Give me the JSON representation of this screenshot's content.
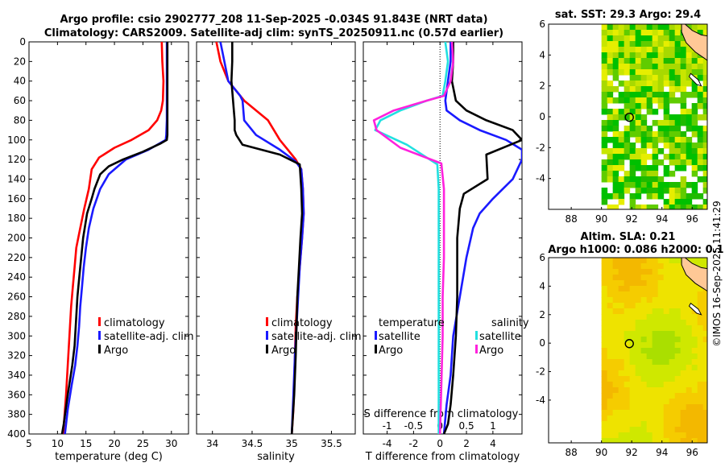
{
  "header": {
    "line1": "Argo profile: csio 2902777_208 11-Sep-2025 -0.034S 91.843E (NRT data)",
    "line2": "Climatology: CARS2009. Satellite-adj clim: synTS_20250911.nc (0.57d earlier)"
  },
  "side_stamp": "©IMOS 16-Sep-2025 11:41:29",
  "colors": {
    "climatology": "#ff0000",
    "satellite": "#1a1aff",
    "argo": "#000000",
    "sal_sat": "#22e0e0",
    "sal_argo": "#ff22dd",
    "land": "#ffc896",
    "axis": "#000000"
  },
  "chart_data": [
    {
      "id": "temperature",
      "type": "line",
      "xlabel": "temperature (deg C)",
      "ylabel": "",
      "xlim": [
        5,
        33
      ],
      "ylim": [
        400,
        0
      ],
      "xticks": [
        5,
        10,
        15,
        20,
        25,
        30
      ],
      "yticks": [
        0,
        20,
        40,
        60,
        80,
        100,
        120,
        140,
        160,
        180,
        200,
        220,
        240,
        260,
        280,
        300,
        320,
        340,
        360,
        380,
        400
      ],
      "legend": [
        {
          "label": "climatology",
          "key": "climatology"
        },
        {
          "label": "satellite-adj. clim",
          "key": "satellite"
        },
        {
          "label": "Argo",
          "key": "argo"
        }
      ],
      "series": [
        {
          "name": "climatology",
          "color": "#ff0000",
          "x": [
            28.3,
            28.4,
            28.6,
            28.5,
            28.2,
            27.5,
            26,
            23,
            20,
            17.3,
            16,
            15.5,
            14.7,
            14,
            13.3,
            13,
            12.7,
            12.4,
            12.2,
            12,
            11.8,
            11.5,
            11
          ],
          "y": [
            0,
            20,
            40,
            60,
            70,
            80,
            90,
            100,
            108,
            118,
            130,
            150,
            170,
            190,
            210,
            230,
            250,
            270,
            290,
            310,
            330,
            360,
            400
          ]
        },
        {
          "name": "satellite",
          "color": "#1a1aff",
          "x": [
            29.2,
            29.2,
            29.2,
            29.2,
            29.2,
            29.1,
            29,
            26,
            22,
            19,
            17.5,
            16.3,
            15.5,
            15,
            14.6,
            14.3,
            14,
            13.8,
            13.5,
            13.1,
            12.5,
            11.8,
            11.3
          ],
          "y": [
            0,
            20,
            40,
            60,
            80,
            95,
            100,
            110,
            120,
            135,
            150,
            170,
            190,
            210,
            230,
            250,
            270,
            290,
            310,
            330,
            350,
            375,
            400
          ]
        },
        {
          "name": "Argo",
          "color": "#000000",
          "x": [
            29.3,
            29.3,
            29.3,
            29.3,
            29.3,
            29.3,
            29.2,
            28,
            25,
            21.5,
            19,
            17.5,
            16.5,
            16,
            15.2,
            14.5,
            14,
            13.5,
            13.2,
            13,
            12.6,
            11.8,
            11.1,
            10.8
          ],
          "y": [
            0,
            20,
            40,
            60,
            80,
            95,
            100,
            104,
            112,
            120,
            127,
            135,
            150,
            160,
            175,
            200,
            230,
            260,
            290,
            310,
            330,
            360,
            390,
            400
          ]
        }
      ]
    },
    {
      "id": "salinity",
      "type": "line",
      "xlabel": "salinity",
      "ylabel": "",
      "xlim": [
        33.8,
        35.8
      ],
      "ylim": [
        400,
        0
      ],
      "xticks": [
        34,
        34.5,
        35,
        35.5
      ],
      "legend": [
        {
          "label": "climatology",
          "key": "climatology"
        },
        {
          "label": "satellite-adj. clim",
          "key": "satellite"
        },
        {
          "label": "Argo",
          "key": "argo"
        }
      ],
      "series": [
        {
          "name": "climatology",
          "color": "#ff0000",
          "x": [
            34.05,
            34.1,
            34.2,
            34.4,
            34.7,
            34.85,
            34.95,
            35.05,
            35.12,
            35.14,
            35.15,
            35.13,
            35.1,
            35.07,
            35.05,
            35.04,
            35.03,
            35.02,
            35.0
          ],
          "y": [
            0,
            20,
            40,
            60,
            80,
            100,
            110,
            120,
            130,
            150,
            175,
            200,
            230,
            260,
            290,
            320,
            350,
            375,
            400
          ]
        },
        {
          "name": "satellite",
          "color": "#1a1aff",
          "x": [
            34.1,
            34.15,
            34.2,
            34.35,
            34.38,
            34.4,
            34.55,
            34.85,
            35.05,
            35.12,
            35.14,
            35.15,
            35.13,
            35.1,
            35.08,
            35.06,
            35.04,
            35.02,
            35.0
          ],
          "y": [
            0,
            20,
            40,
            55,
            60,
            80,
            95,
            110,
            122,
            130,
            150,
            175,
            200,
            230,
            260,
            290,
            320,
            360,
            400
          ]
        },
        {
          "name": "Argo",
          "color": "#000000",
          "x": [
            34.25,
            34.25,
            34.24,
            34.26,
            34.28,
            34.28,
            34.3,
            34.38,
            34.85,
            35.1,
            35.12,
            35.13,
            35.11,
            35.09,
            35.07,
            35.06,
            35.05,
            35.03,
            35.0
          ],
          "y": [
            0,
            20,
            40,
            60,
            80,
            90,
            95,
            105,
            115,
            125,
            150,
            175,
            200,
            230,
            260,
            290,
            320,
            360,
            400
          ]
        }
      ]
    },
    {
      "id": "difference",
      "type": "line",
      "xlabel": "T difference from climatology",
      "xlabel_top": "S difference from climatology",
      "xlim": [
        -5.8,
        6.2
      ],
      "ylim": [
        400,
        0
      ],
      "xticks": [
        -4,
        -2,
        0,
        2,
        4
      ],
      "xticks_s": [
        -1,
        -0.5,
        0,
        0.5,
        1
      ],
      "xticks_s_labels": [
        "-1",
        "-0.5",
        "0",
        "0.5",
        "1"
      ],
      "s_scale": 4,
      "legend_left_title": "temperature",
      "legend_right_title": "salinity",
      "legend_left": [
        {
          "label": "satellite",
          "key": "satellite"
        },
        {
          "label": "Argo",
          "key": "argo"
        }
      ],
      "legend_right": [
        {
          "label": "satellite",
          "key": "sal_sat"
        },
        {
          "label": "Argo",
          "key": "sal_argo"
        }
      ],
      "series": [
        {
          "name": "T satellite",
          "color": "#1a1aff",
          "x": [
            0.8,
            0.8,
            0.6,
            0.4,
            0.5,
            1.5,
            3,
            5,
            6.2,
            6.2,
            5.5,
            4,
            3,
            2.5,
            2,
            1.5,
            1,
            0.8,
            0.5,
            0.3
          ],
          "y": [
            0,
            20,
            40,
            60,
            70,
            80,
            90,
            100,
            110,
            120,
            140,
            160,
            175,
            190,
            220,
            260,
            300,
            340,
            370,
            400
          ]
        },
        {
          "name": "T Argo",
          "color": "#000000",
          "x": [
            1,
            1,
            0.9,
            1.2,
            2,
            3.5,
            5.5,
            6.2,
            3.5,
            3.6,
            1.8,
            1.5,
            1.3,
            1.3,
            1.3,
            1.2,
            1.0,
            0.8,
            0.6,
            0.3
          ],
          "y": [
            0,
            20,
            40,
            60,
            70,
            80,
            90,
            100,
            115,
            140,
            155,
            170,
            200,
            230,
            260,
            300,
            340,
            370,
            390,
            400
          ]
        },
        {
          "name": "S satellite",
          "color": "#22e0e0",
          "x": [
            0.4,
            0.6,
            0.4,
            0.2,
            -1.0,
            -3.0,
            -4.5,
            -4.9,
            -2.5,
            -0.2,
            -0.1,
            -0.1,
            -0.1,
            -0.1,
            -0.1,
            -0.1,
            -0.1
          ],
          "y": [
            0,
            20,
            40,
            55,
            60,
            70,
            80,
            90,
            105,
            125,
            150,
            180,
            220,
            260,
            300,
            350,
            400
          ]
        },
        {
          "name": "S Argo",
          "color": "#ff22dd",
          "x": [
            0.9,
            1.0,
            0.8,
            0.3,
            -1.0,
            -3.5,
            -5.0,
            -4.8,
            -3.0,
            0.1,
            0.3,
            0.3,
            0.3,
            0.2,
            0.2,
            0.1,
            0.0
          ],
          "y": [
            0,
            20,
            40,
            55,
            60,
            70,
            80,
            90,
            108,
            124,
            150,
            180,
            220,
            260,
            300,
            350,
            400
          ]
        }
      ]
    },
    {
      "id": "sst_map",
      "type": "heatmap",
      "title": "sat. SST: 29.3 Argo: 29.4",
      "xlim": [
        86.5,
        97
      ],
      "ylim": [
        -6,
        6
      ],
      "xticks": [
        88,
        90,
        92,
        94,
        96
      ],
      "yticks": [
        -4,
        -2,
        0,
        2,
        4,
        6
      ],
      "data_start_lon": 90,
      "argo_position": {
        "lon": 91.843,
        "lat": -0.034
      },
      "colormap": [
        "#a8d900",
        "#c8e600",
        "#e6ee00",
        "#60cc00",
        "#1fbb00",
        "#00c000"
      ]
    },
    {
      "id": "sla_map",
      "type": "heatmap",
      "title": "Altim. SLA: 0.21",
      "subtitle": "Argo h1000: 0.086 h2000: 0.1",
      "xlim": [
        86.5,
        97
      ],
      "ylim": [
        -7,
        6
      ],
      "xticks": [
        88,
        90,
        92,
        94,
        96
      ],
      "yticks": [
        -4,
        -2,
        0,
        2,
        4,
        6
      ],
      "data_start_lon": 90,
      "argo_position": {
        "lon": 91.843,
        "lat": -0.034
      },
      "colormap": [
        "#aadf00",
        "#cfe800",
        "#eee300",
        "#f5cc00",
        "#f3b800"
      ]
    }
  ]
}
